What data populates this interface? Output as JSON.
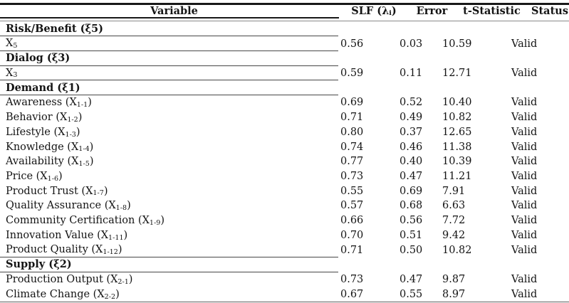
{
  "page": {
    "background": "#ffffff",
    "text_color": "#141414",
    "rule_color": "#181818"
  },
  "table": {
    "header": {
      "variable": "Variable",
      "slf_prefix": "SLF (λ",
      "slf_sub": "i",
      "slf_suffix": ")",
      "error": "Error",
      "t": "t-Statistic",
      "status": "Status"
    },
    "rows": [
      {
        "type": "section",
        "label": "Risk/Benefit (ξ5)",
        "underline": true
      },
      {
        "type": "data",
        "prefix": "X",
        "sub": "5",
        "suffix": "",
        "slf": "0.56",
        "error": "0.03",
        "t": "10.59",
        "status": "Valid",
        "underline": true
      },
      {
        "type": "section",
        "label": "Dialog (ξ3)",
        "underline": true
      },
      {
        "type": "data",
        "prefix": "X",
        "sub": "3",
        "suffix": "",
        "slf": "0.59",
        "error": "0.11",
        "t": "12.71",
        "status": "Valid",
        "underline": true
      },
      {
        "type": "section",
        "label": "Demand (ξ1)",
        "underline": true
      },
      {
        "type": "data",
        "prefix": "Awareness (X",
        "sub": "1-1",
        "suffix": ")",
        "slf": "0.69",
        "error": "0.52",
        "t": "10.40",
        "status": "Valid",
        "underline": false
      },
      {
        "type": "data",
        "prefix": "Behavior (X",
        "sub": "1-2",
        "suffix": ")",
        "slf": "0.71",
        "error": "0.49",
        "t": "10.82",
        "status": "Valid",
        "underline": false
      },
      {
        "type": "data",
        "prefix": "Lifestyle (X",
        "sub": "1-3",
        "suffix": ")",
        "slf": "0.80",
        "error": "0.37",
        "t": "12.65",
        "status": "Valid",
        "underline": false
      },
      {
        "type": "data",
        "prefix": "Knowledge (X",
        "sub": "1-4",
        "suffix": ")",
        "slf": "0.74",
        "error": "0.46",
        "t": "11.38",
        "status": "Valid",
        "underline": false
      },
      {
        "type": "data",
        "prefix": "Availability (X",
        "sub": "1-5",
        "suffix": ")",
        "slf": "0.77",
        "error": "0.40",
        "t": "10.39",
        "status": "Valid",
        "underline": false
      },
      {
        "type": "data",
        "prefix": "Price (X",
        "sub": "1-6",
        "suffix": ")",
        "slf": "0.73",
        "error": "0.47",
        "t": "11.21",
        "status": "Valid",
        "underline": false
      },
      {
        "type": "data",
        "prefix": "Product Trust (X",
        "sub": "1-7",
        "suffix": ")",
        "slf": "0.55",
        "error": "0.69",
        "t": "7.91",
        "status": "Valid",
        "underline": false
      },
      {
        "type": "data",
        "prefix": "Quality Assurance (X",
        "sub": "1-8",
        "suffix": ")",
        "slf": "0.57",
        "error": "0.68",
        "t": "6.63",
        "status": "Valid",
        "underline": false
      },
      {
        "type": "data",
        "prefix": "Community Certification (X",
        "sub": "1-9",
        "suffix": ")",
        "slf": "0.66",
        "error": "0.56",
        "t": "7.72",
        "status": "Valid",
        "underline": false
      },
      {
        "type": "data",
        "prefix": "Innovation Value (X",
        "sub": "1-11",
        "suffix": ")",
        "slf": "0.70",
        "error": "0.51",
        "t": "9.42",
        "status": "Valid",
        "underline": false
      },
      {
        "type": "data",
        "prefix": "Product Quality (X",
        "sub": "1-12",
        "suffix": ")",
        "slf": "0.71",
        "error": "0.50",
        "t": "10.82",
        "status": "Valid",
        "underline": true
      },
      {
        "type": "section",
        "label": "Supply (ξ2)",
        "underline": true
      },
      {
        "type": "data",
        "prefix": "Production Output (X",
        "sub": "2-1",
        "suffix": ")",
        "slf": "0.73",
        "error": "0.47",
        "t": "9.87",
        "status": "Valid",
        "underline": false
      },
      {
        "type": "data",
        "prefix": "Climate Change (X",
        "sub": "2-2",
        "suffix": ")",
        "slf": "0.67",
        "error": "0.55",
        "t": "8.97",
        "status": "Valid",
        "underline": false
      }
    ]
  }
}
